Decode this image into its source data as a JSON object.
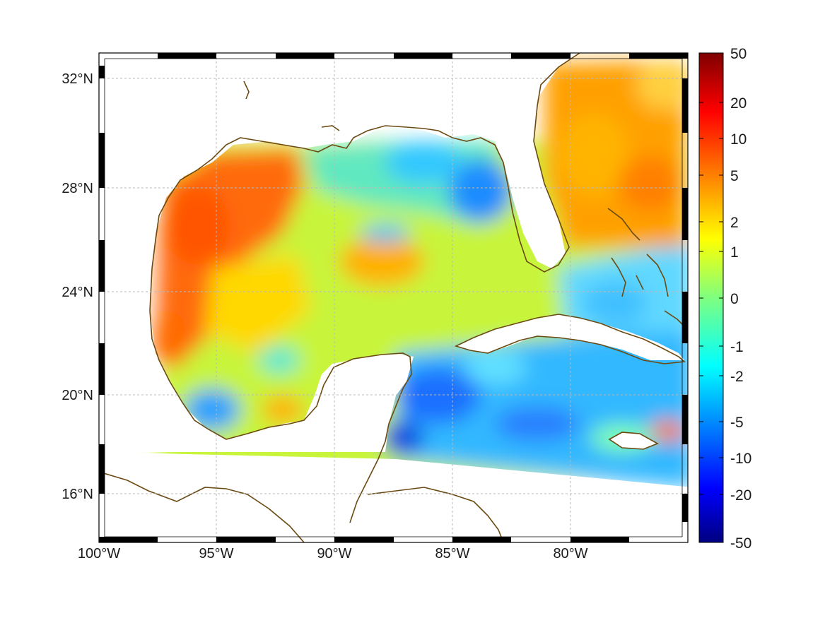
{
  "map": {
    "region": "Gulf of Mexico and Caribbean",
    "x_ticks": [
      {
        "lon": -100,
        "label": "100°W"
      },
      {
        "lon": -95,
        "label": "95°W"
      },
      {
        "lon": -90,
        "label": "90°W"
      },
      {
        "lon": -85,
        "label": "85°W"
      },
      {
        "lon": -80,
        "label": "80°W"
      }
    ],
    "y_ticks": [
      {
        "lat": 32,
        "label": "32°N"
      },
      {
        "lat": 28,
        "label": "28°N"
      },
      {
        "lat": 24,
        "label": "24°N"
      },
      {
        "lat": 20,
        "label": "20°N"
      },
      {
        "lat": 16,
        "label": "16°N"
      }
    ],
    "lon_range": [
      -100,
      -75
    ],
    "lat_range": [
      14.2,
      32.9
    ],
    "grid": true,
    "colors": {
      "coastline": "#6b4a12",
      "land": "#ffffff",
      "frame": "#000000",
      "grid": "#b9b9b9"
    }
  },
  "colorbar": {
    "labels": [
      "50",
      "20",
      "10",
      "5",
      "2",
      "1",
      "0",
      "-1",
      "-2",
      "-5",
      "-10",
      "-20",
      "-50"
    ],
    "colormap": "jet",
    "placement": "right"
  }
}
